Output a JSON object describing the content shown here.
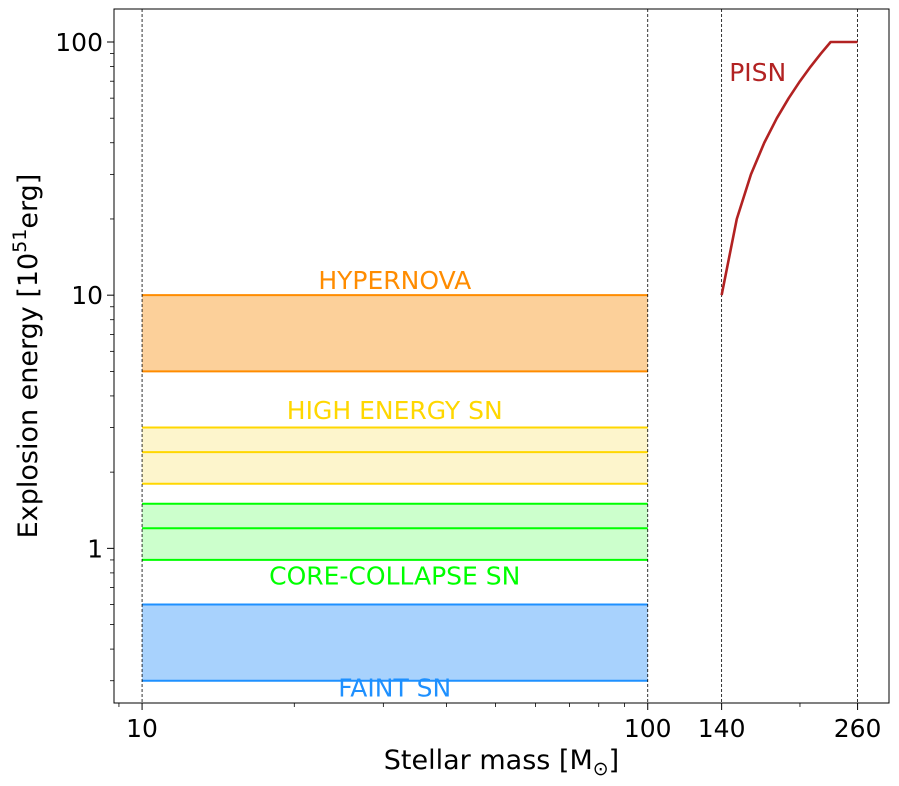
{
  "chart_data": {
    "type": "area",
    "xlabel": "Stellar mass [M⊙]",
    "xlabel_text": "Stellar mass [M",
    "xlabel_sub": "⊙",
    "xlabel_close": "]",
    "ylabel_text": "Explosion energy [10",
    "ylabel_sup": "51",
    "ylabel_unit": "erg]",
    "xscale": "log",
    "yscale": "log",
    "xlim": [
      8.8,
      300
    ],
    "ylim": [
      0.245,
      135
    ],
    "xticks": [
      10,
      100,
      140,
      260
    ],
    "xtick_labels": [
      "10",
      "100",
      "140",
      "260"
    ],
    "yticks": [
      1,
      10,
      100
    ],
    "ytick_labels": [
      "1",
      "10",
      "100"
    ],
    "vlines": [
      10,
      100,
      140,
      260
    ],
    "bands": [
      {
        "name": "HYPERNOVA",
        "x": [
          10,
          100
        ],
        "y_low": 5,
        "y_high": 10,
        "color": "#ff8c00",
        "fill": "#fcd09a",
        "extra_lines": []
      },
      {
        "name": "HIGH ENERGY SN",
        "x": [
          10,
          100
        ],
        "y_low": 1.8,
        "y_high": 3.0,
        "color": "#ffd700",
        "fill": "#fdf5cc",
        "extra_lines": [
          2.4
        ]
      },
      {
        "name": "CORE-COLLAPSE SN",
        "x": [
          10,
          100
        ],
        "y_low": 0.9,
        "y_high": 1.5,
        "color": "#00ff00",
        "fill": "#ccffcc",
        "extra_lines": [
          1.2
        ]
      },
      {
        "name": "FAINT SN",
        "x": [
          10,
          100
        ],
        "y_low": 0.3,
        "y_high": 0.6,
        "color": "#1e90ff",
        "fill": "#a8d2fd",
        "extra_lines": []
      }
    ],
    "labels": [
      {
        "text": "HYPERNOVA",
        "x": 31.6,
        "y": 10.6,
        "color": "#ff8c00"
      },
      {
        "text": "HIGH ENERGY SN",
        "x": 31.6,
        "y": 3.25,
        "color": "#ffd700"
      },
      {
        "text": "CORE-COLLAPSE SN",
        "x": 31.6,
        "y": 0.72,
        "color": "#00ff00"
      },
      {
        "text": "FAINT SN",
        "x": 31.6,
        "y": 0.26,
        "color": "#1e90ff"
      },
      {
        "text": "PISN",
        "x": 165,
        "y": 70,
        "color": "#b22222"
      }
    ],
    "series": [
      {
        "name": "PISN",
        "color": "#b22222",
        "x": [
          140,
          150,
          160,
          170,
          180,
          190,
          200,
          210,
          220,
          230,
          240,
          250,
          260
        ],
        "y": [
          10,
          20,
          30,
          40,
          50,
          60,
          70,
          80,
          90,
          100,
          100,
          100,
          100
        ]
      }
    ]
  }
}
